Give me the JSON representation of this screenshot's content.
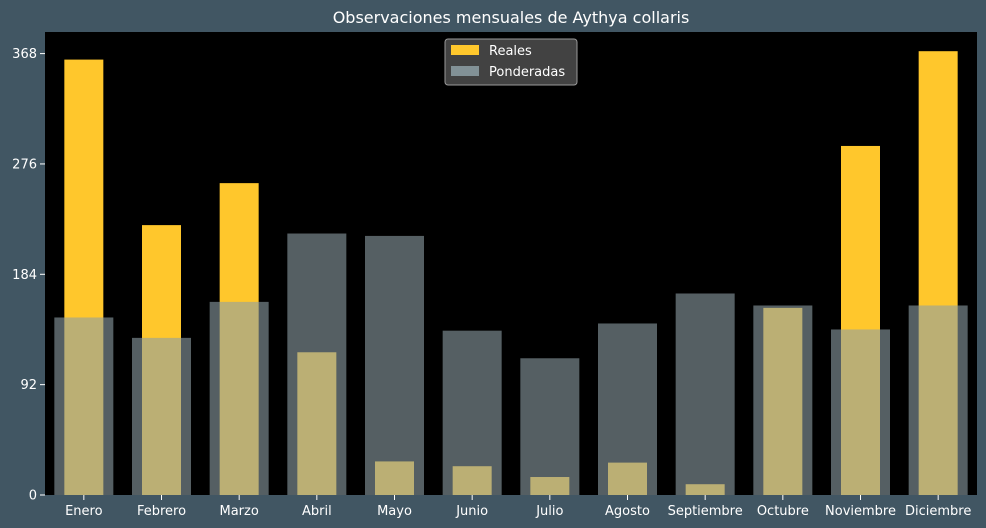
{
  "chart_data": {
    "type": "bar",
    "title": "Observaciones mensuales de Aythya collaris",
    "xlabel": "",
    "ylabel": "",
    "categories": [
      "Enero",
      "Febrero",
      "Marzo",
      "Abril",
      "Mayo",
      "Junio",
      "Julio",
      "Agosto",
      "Septiembre",
      "Octubre",
      "Noviembre",
      "Diciembre"
    ],
    "series": [
      {
        "name": "Reales",
        "color": "#ffc72c",
        "values": [
          363,
          225,
          260,
          119,
          28,
          24,
          15,
          27,
          9,
          156,
          291,
          370
        ]
      },
      {
        "name": "Ponderadas",
        "color": "#8d9fa5",
        "values": [
          148,
          131,
          161,
          218,
          216,
          137,
          114,
          143,
          168,
          158,
          138,
          158
        ]
      }
    ],
    "ylim": [
      0,
      386
    ],
    "yticks": [
      0,
      92,
      184,
      276,
      368
    ],
    "legend": "upper-center",
    "grid": false,
    "background_color": "#000000",
    "figure_color": "#415663"
  }
}
